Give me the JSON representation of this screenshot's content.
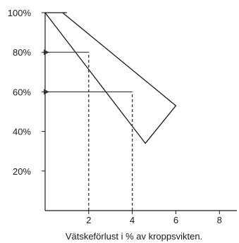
{
  "chart_data": {
    "type": "line",
    "title": "",
    "xlabel": "Vätskeförlust i % av kroppsvikten.",
    "ylabel": "",
    "xlim": [
      0,
      8.8
    ],
    "ylim": [
      0,
      100
    ],
    "x_ticks": [
      "2",
      "4",
      "6",
      "8"
    ],
    "y_ticks": [
      "100%",
      "80%",
      "60%",
      "40%",
      "20%"
    ],
    "grid": false,
    "legend": "none",
    "series": [
      {
        "points": [
          [
            0,
            100
          ],
          [
            4.6,
            34
          ],
          [
            6,
            53
          ],
          [
            0.8,
            100
          ]
        ]
      }
    ],
    "annotations": [
      {
        "x": 2,
        "y": 80,
        "type": "dashed-drop-line-with-arrow-to-y-axis"
      },
      {
        "x": 4,
        "y": 60,
        "type": "dashed-drop-line-with-arrow-to-y-axis"
      }
    ],
    "colors": {
      "line": "#1a1a1a",
      "guide": "#333333"
    }
  }
}
